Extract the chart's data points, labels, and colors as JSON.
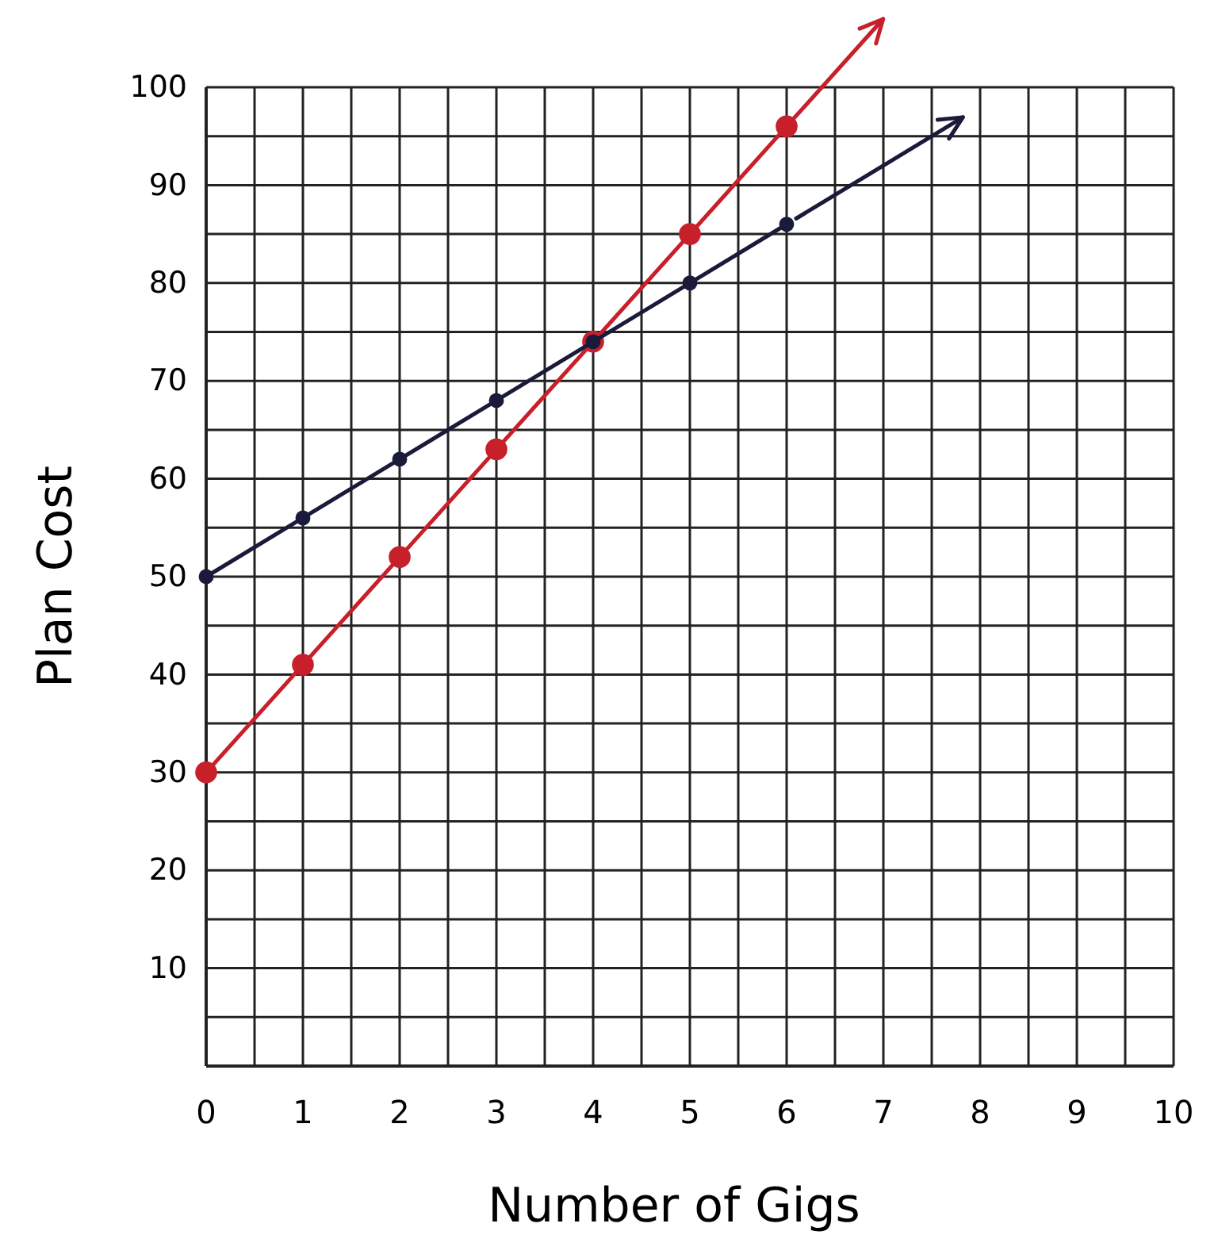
{
  "chart_data": {
    "type": "line",
    "xlabel": "Number of Gigs",
    "ylabel": "Plan Cost",
    "xlim": [
      0,
      10
    ],
    "ylim": [
      0,
      100
    ],
    "xticks": [
      0,
      1,
      2,
      3,
      4,
      5,
      6,
      7,
      8,
      9,
      10
    ],
    "yticks": [
      10,
      20,
      30,
      40,
      50,
      60,
      70,
      80,
      90,
      100
    ],
    "grid": true,
    "marker": "circle",
    "series": [
      {
        "color": "#c8202a",
        "x": [
          0,
          1,
          2,
          3,
          4,
          5,
          6
        ],
        "values": [
          30,
          41,
          52,
          63,
          74,
          85,
          96
        ]
      },
      {
        "color": "#1a1a3a",
        "x": [
          0,
          1,
          2,
          3,
          4,
          5,
          6
        ],
        "values": [
          50,
          56,
          62,
          68,
          74,
          80,
          86
        ]
      }
    ]
  }
}
